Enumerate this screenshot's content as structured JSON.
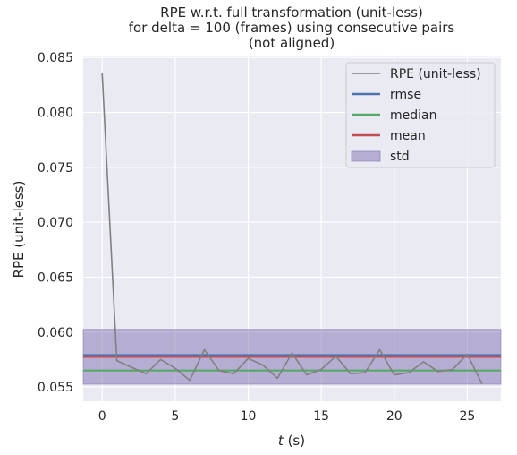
{
  "chart_data": {
    "type": "line",
    "title_lines": [
      "RPE w.r.t. full transformation (unit-less)",
      "for delta = 100 (frames) using consecutive pairs",
      "(not aligned)"
    ],
    "xlabel_italic": "t",
    "xlabel_rest": " (s)",
    "ylabel": "RPE (unit-less)",
    "xlim": [
      -1.3,
      27.3
    ],
    "ylim": [
      0.0537,
      0.0851
    ],
    "x_ticks": [
      0,
      5,
      10,
      15,
      20,
      25
    ],
    "x_tick_labels": [
      "0",
      "5",
      "10",
      "15",
      "20",
      "25"
    ],
    "y_ticks": [
      0.055,
      0.06,
      0.065,
      0.07,
      0.075,
      0.08,
      0.085
    ],
    "y_tick_labels": [
      "0.055",
      "0.060",
      "0.065",
      "0.070",
      "0.075",
      "0.080",
      "0.085"
    ],
    "grid": true,
    "legend_position": "top-right",
    "series": [
      {
        "name": "RPE (unit-less)",
        "color": "#808080",
        "x": [
          0,
          1,
          2,
          3,
          4,
          5,
          6,
          7,
          8,
          9,
          10,
          11,
          12,
          13,
          14,
          15,
          16,
          17,
          18,
          19,
          20,
          21,
          22,
          23,
          24,
          25,
          26
        ],
        "y": [
          0.0836,
          0.0574,
          0.0568,
          0.0562,
          0.0575,
          0.0567,
          0.0556,
          0.0584,
          0.0565,
          0.0562,
          0.0576,
          0.057,
          0.0558,
          0.0581,
          0.0561,
          0.0566,
          0.0578,
          0.0562,
          0.0563,
          0.0584,
          0.0561,
          0.0563,
          0.0573,
          0.0564,
          0.0566,
          0.058,
          0.0553
        ]
      }
    ],
    "stats": {
      "rmse": 0.0579,
      "median": 0.0565,
      "mean": 0.05775,
      "std_low": 0.05525,
      "std_high": 0.06025
    },
    "legend": [
      "RPE (unit-less)",
      "rmse",
      "median",
      "mean",
      "std"
    ],
    "colors": {
      "rpe": "#808080",
      "rmse": "#4c72b0",
      "median": "#55a868",
      "mean": "#c44e52",
      "std": "#8172b2",
      "background": "#eaeaf2",
      "grid": "#ffffff"
    }
  }
}
